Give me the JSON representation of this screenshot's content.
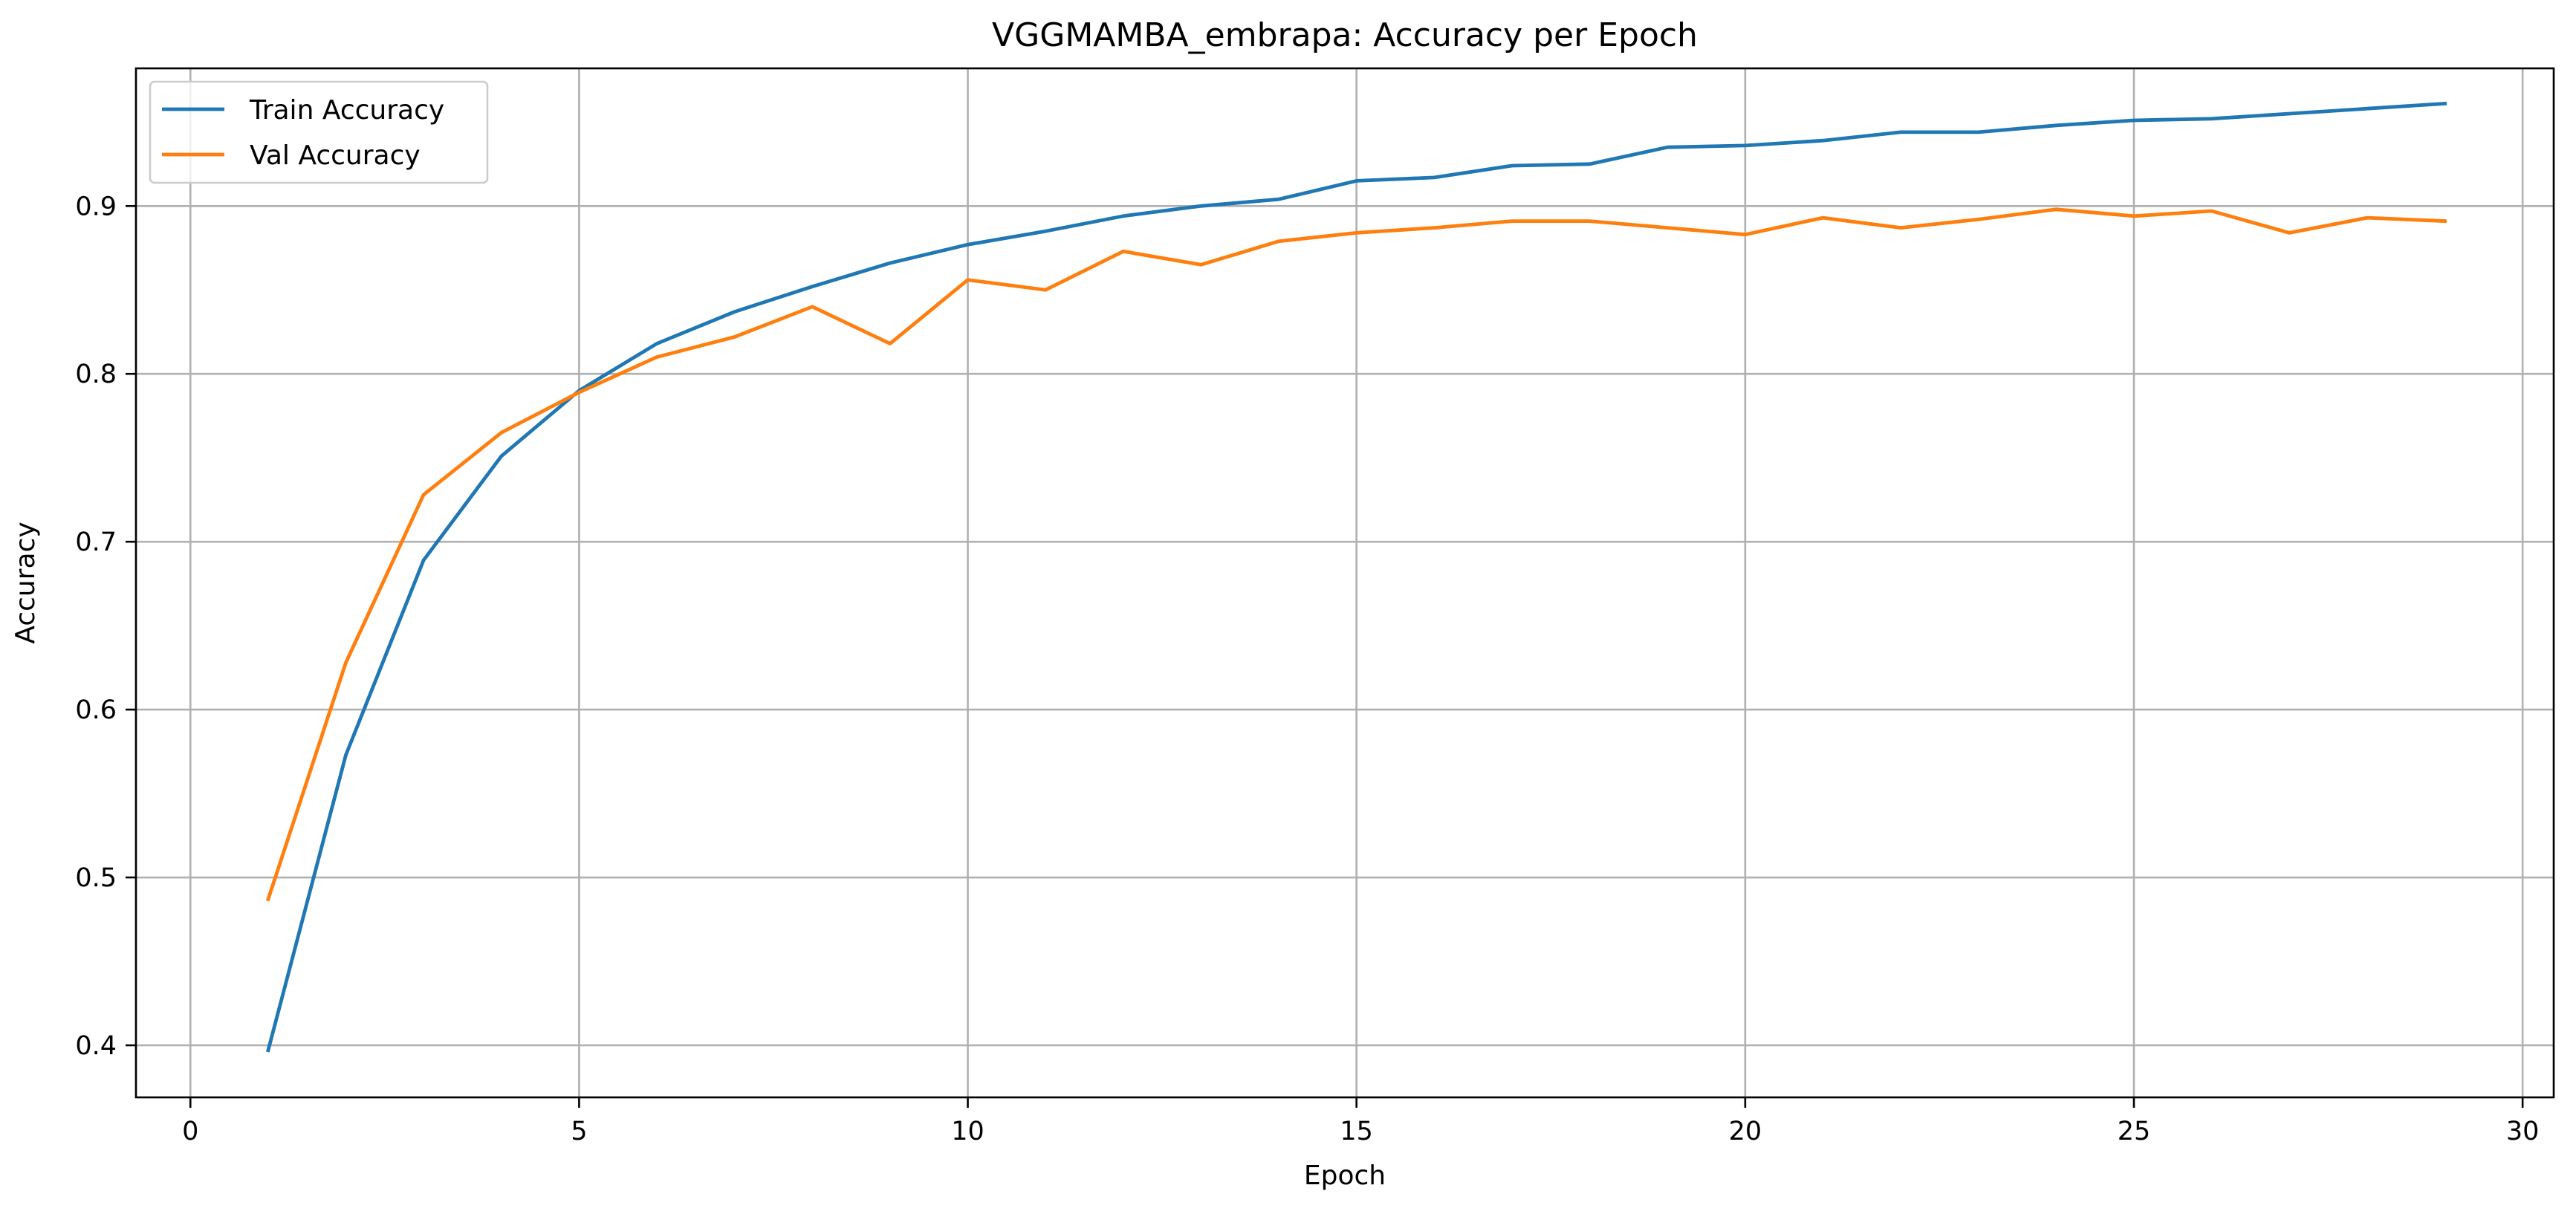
{
  "chart_data": {
    "type": "line",
    "title": "VGGMAMBA_embrapa: Accuracy per Epoch",
    "xlabel": "Epoch",
    "ylabel": "Accuracy",
    "xlim": [
      -0.7,
      30.4
    ],
    "ylim": [
      0.369,
      0.982
    ],
    "xticks": [
      0,
      5,
      10,
      15,
      20,
      25,
      30
    ],
    "xtick_labels": [
      "0",
      "5",
      "10",
      "15",
      "20",
      "25",
      "30"
    ],
    "yticks": [
      0.4,
      0.5,
      0.6,
      0.7,
      0.8,
      0.9
    ],
    "ytick_labels": [
      "0.4",
      "0.5",
      "0.6",
      "0.7",
      "0.8",
      "0.9"
    ],
    "grid": true,
    "legend_position": "top-left",
    "x": [
      1,
      2,
      3,
      4,
      5,
      6,
      7,
      8,
      9,
      10,
      11,
      12,
      13,
      14,
      15,
      16,
      17,
      18,
      19,
      20,
      21,
      22,
      23,
      24,
      25,
      26,
      27,
      28,
      29
    ],
    "series": [
      {
        "name": "Train Accuracy",
        "color": "#1f77b4",
        "values": [
          0.397,
          0.573,
          0.689,
          0.751,
          0.79,
          0.818,
          0.837,
          0.852,
          0.866,
          0.877,
          0.885,
          0.894,
          0.9,
          0.904,
          0.915,
          0.917,
          0.924,
          0.925,
          0.935,
          0.936,
          0.939,
          0.944,
          0.944,
          0.948,
          0.951,
          0.952,
          0.955,
          0.958,
          0.961
        ]
      },
      {
        "name": "Val Accuracy",
        "color": "#ff7f0e",
        "values": [
          0.487,
          0.628,
          0.728,
          0.765,
          0.789,
          0.81,
          0.822,
          0.84,
          0.818,
          0.856,
          0.85,
          0.873,
          0.865,
          0.879,
          0.884,
          0.887,
          0.891,
          0.891,
          0.887,
          0.883,
          0.893,
          0.887,
          0.892,
          0.898,
          0.894,
          0.897,
          0.884,
          0.893,
          0.891
        ]
      }
    ]
  }
}
